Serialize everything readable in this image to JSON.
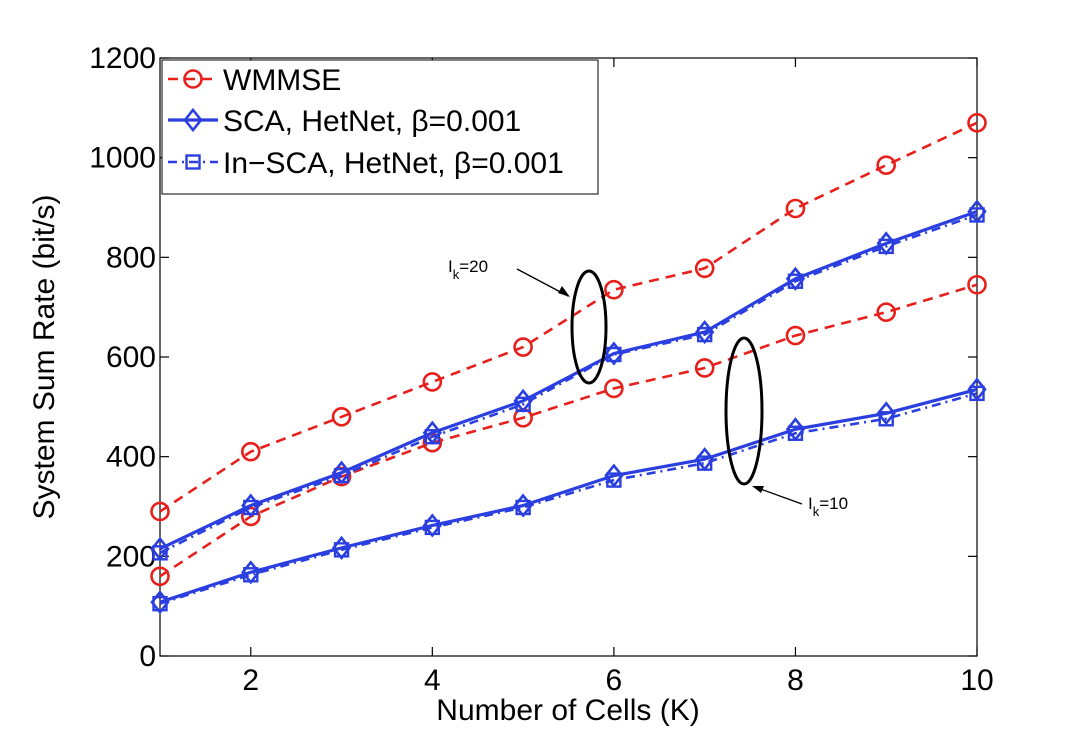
{
  "chart_data": {
    "type": "line",
    "title": "",
    "xlabel": "Number of Cells (K)",
    "ylabel": "System Sum Rate (bit/s)",
    "xlim": [
      1,
      10
    ],
    "ylim": [
      0,
      1200
    ],
    "xticks": [
      2,
      4,
      6,
      8,
      10
    ],
    "yticks": [
      0,
      200,
      400,
      600,
      800,
      1000,
      1200
    ],
    "grid": false,
    "legend_position": "top-left",
    "legend": [
      {
        "label": "WMMSE",
        "color": "#e8201c",
        "style": "dashed",
        "marker": "circle"
      },
      {
        "label": "SCA, HetNet, β=0.001",
        "color": "#2b3fe0",
        "style": "solid",
        "marker": "diamond"
      },
      {
        "label": "In−SCA, HetNet, β=0.001",
        "color": "#2b3fe0",
        "style": "dashdot",
        "marker": "square"
      }
    ],
    "x": [
      1,
      2,
      3,
      4,
      5,
      6,
      7,
      8,
      9,
      10
    ],
    "series": [
      {
        "name": "WMMSE (I_k=20)",
        "group": "WMMSE",
        "color": "#e8201c",
        "style": "dashed",
        "marker": "circle",
        "values": [
          290,
          410,
          480,
          550,
          620,
          735,
          778,
          898,
          985,
          1070
        ]
      },
      {
        "name": "SCA, HetNet (I_k=20)",
        "group": "SCA",
        "color": "#2b3fe0",
        "style": "solid",
        "marker": "diamond",
        "values": [
          215,
          302,
          368,
          448,
          512,
          607,
          650,
          757,
          828,
          892
        ]
      },
      {
        "name": "In-SCA, HetNet (I_k=20)",
        "group": "In-SCA",
        "color": "#2b3fe0",
        "style": "dashdot",
        "marker": "square",
        "values": [
          207,
          298,
          362,
          440,
          505,
          605,
          645,
          752,
          822,
          885
        ]
      },
      {
        "name": "WMMSE (I_k=10)",
        "group": "WMMSE",
        "color": "#e8201c",
        "style": "dashed",
        "marker": "circle",
        "values": [
          160,
          280,
          360,
          428,
          478,
          537,
          578,
          643,
          690,
          745
        ]
      },
      {
        "name": "SCA, HetNet (I_k=10)",
        "group": "SCA",
        "color": "#2b3fe0",
        "style": "solid",
        "marker": "diamond",
        "values": [
          108,
          168,
          217,
          262,
          302,
          362,
          395,
          455,
          487,
          535
        ]
      },
      {
        "name": "In-SCA, HetNet (I_k=10)",
        "group": "In-SCA",
        "color": "#2b3fe0",
        "style": "dashdot",
        "marker": "square",
        "values": [
          105,
          163,
          213,
          258,
          298,
          353,
          387,
          447,
          476,
          527
        ]
      }
    ],
    "annotations": [
      {
        "label": "I",
        "subscript": "k",
        "suffix": "=20",
        "target": "I_k=20 curves at K≈6"
      },
      {
        "label": "I",
        "subscript": "k",
        "suffix": "=10",
        "target": "I_k=10 curves at K≈7.4"
      }
    ]
  }
}
